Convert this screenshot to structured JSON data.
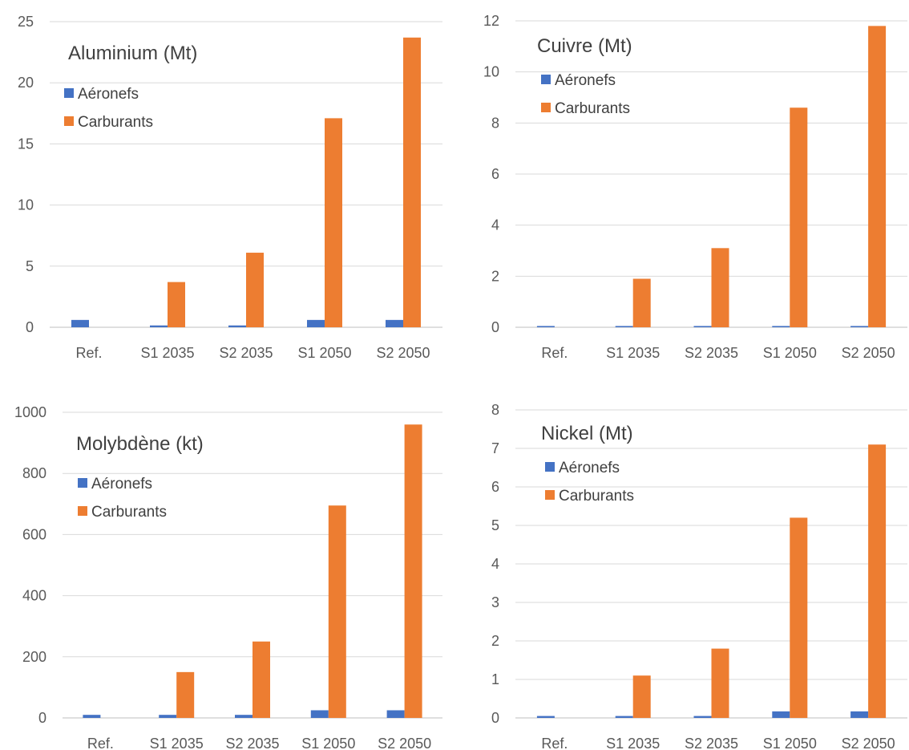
{
  "colors": {
    "aeronefs": "#4472C4",
    "carburants": "#ED7D31",
    "gridline": "#D9D9D9",
    "text": "#595959"
  },
  "chart_data": [
    {
      "type": "bar",
      "title": "Aluminium (Mt)",
      "categories": [
        "Ref.",
        "S1 2035",
        "S2 2035",
        "S1 2050",
        "S2 2050"
      ],
      "series": [
        {
          "name": "Aéronefs",
          "values": [
            0.6,
            0.15,
            0.15,
            0.6,
            0.6
          ]
        },
        {
          "name": "Carburants",
          "values": [
            0,
            3.7,
            6.1,
            17.1,
            23.7
          ]
        }
      ],
      "ylim": [
        0,
        25
      ],
      "yticks": [
        0,
        5,
        10,
        15,
        20,
        25
      ],
      "grid": true,
      "legend": "top-left"
    },
    {
      "type": "bar",
      "title": "Cuivre (Mt)",
      "categories": [
        "Ref.",
        "S1 2035",
        "S2 2035",
        "S1 2050",
        "S2 2050"
      ],
      "series": [
        {
          "name": "Aéronefs",
          "values": [
            0.05,
            0.05,
            0.05,
            0.05,
            0.05
          ]
        },
        {
          "name": "Carburants",
          "values": [
            0,
            1.9,
            3.1,
            8.6,
            11.8
          ]
        }
      ],
      "ylim": [
        0,
        12
      ],
      "yticks": [
        0,
        2,
        4,
        6,
        8,
        10,
        12
      ],
      "grid": true,
      "legend": "top-left"
    },
    {
      "type": "bar",
      "title": "Molybdène (kt)",
      "categories": [
        "Ref.",
        "S1 2035",
        "S2 2035",
        "S1 2050",
        "S2 2050"
      ],
      "series": [
        {
          "name": "Aéronefs",
          "values": [
            10,
            10,
            10,
            25,
            25
          ]
        },
        {
          "name": "Carburants",
          "values": [
            0,
            150,
            250,
            695,
            960
          ]
        }
      ],
      "ylim": [
        0,
        1000
      ],
      "yticks": [
        0,
        200,
        400,
        600,
        800,
        1000
      ],
      "grid": true,
      "legend": "top-left"
    },
    {
      "type": "bar",
      "title": "Nickel (Mt)",
      "categories": [
        "Ref.",
        "S1 2035",
        "S2 2035",
        "S1 2050",
        "S2 2050"
      ],
      "series": [
        {
          "name": "Aéronefs",
          "values": [
            0.05,
            0.05,
            0.05,
            0.17,
            0.17
          ]
        },
        {
          "name": "Carburants",
          "values": [
            0,
            1.1,
            1.8,
            5.2,
            7.1
          ]
        }
      ],
      "ylim": [
        0,
        8
      ],
      "yticks": [
        0,
        1,
        2,
        3,
        4,
        5,
        6,
        7,
        8
      ],
      "grid": true,
      "legend": "top-left"
    }
  ]
}
